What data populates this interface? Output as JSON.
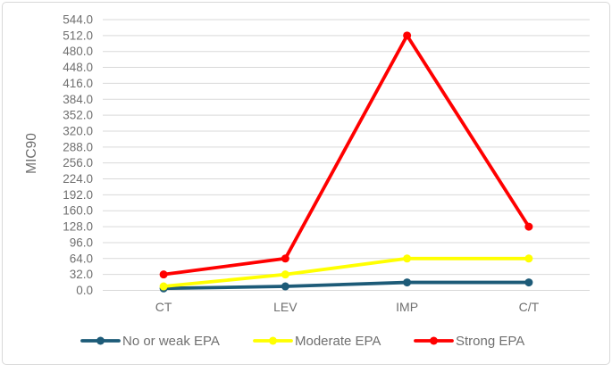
{
  "chart_data": {
    "type": "line",
    "title": "",
    "xlabel": "",
    "ylabel": "MIC90",
    "categories": [
      "CT",
      "LEV",
      "IMP",
      "C/T"
    ],
    "series": [
      {
        "name": "No or weak EPA",
        "color": "#1D5B78",
        "values": [
          4,
          8,
          16,
          16
        ]
      },
      {
        "name": "Moderate EPA",
        "color": "#FFFF00",
        "values": [
          8,
          32,
          64,
          64
        ]
      },
      {
        "name": "Strong EPA",
        "color": "#FF0000",
        "values": [
          32,
          64,
          512,
          128
        ]
      }
    ],
    "y_axis": {
      "min": 0,
      "max": 544,
      "step": 32,
      "tick_labels": [
        "0.0",
        "32.0",
        "64.0",
        "96.0",
        "128.0",
        "160.0",
        "192.0",
        "224.0",
        "256.0",
        "288.0",
        "320.0",
        "352.0",
        "384.0",
        "416.0",
        "448.0",
        "480.0",
        "512.0",
        "544.0"
      ]
    },
    "grid": true,
    "legend_position": "bottom",
    "colors": {
      "background": "#FFFFFF",
      "gridline": "#D9D9D9",
      "axis_text": "#6F6F6F",
      "frame_border": "#D8D8D8"
    }
  }
}
